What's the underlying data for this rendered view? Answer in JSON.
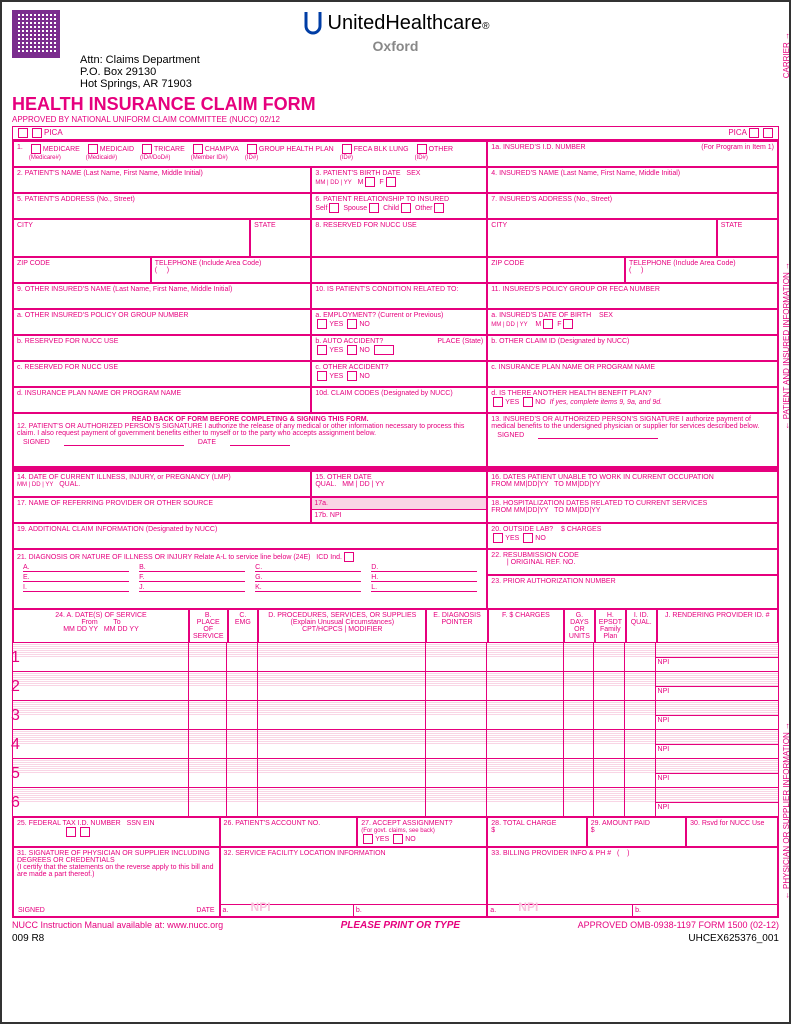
{
  "brand": {
    "name": "UnitedHealthcare",
    "sub": "Oxford",
    "trademark": "®"
  },
  "mailing": {
    "attn": "Attn: Claims Department",
    "po": "P.O. Box 29130",
    "city": "Hot Springs, AR 71903"
  },
  "form": {
    "title": "HEALTH INSURANCE CLAIM FORM",
    "approved": "APPROVED BY NATIONAL UNIFORM CLAIM COMMITTEE (NUCC) 02/12",
    "pica": "PICA"
  },
  "box1": {
    "medicare": "MEDICARE",
    "medicare_sub": "(Medicare#)",
    "medicaid": "MEDICAID",
    "medicaid_sub": "(Medicaid#)",
    "tricare": "TRICARE",
    "tricare_sub": "(ID#/DoD#)",
    "champva": "CHAMPVA",
    "champva_sub": "(Member ID#)",
    "group": "GROUP HEALTH PLAN",
    "group_sub": "(ID#)",
    "feca": "FECA BLK LUNG",
    "feca_sub": "(ID#)",
    "other": "OTHER",
    "other_sub": "(ID#)"
  },
  "box1a": {
    "label": "1a. INSURED'S I.D. NUMBER",
    "hint": "(For Program in Item 1)"
  },
  "box2": {
    "label": "2. PATIENT'S NAME (Last Name, First Name, Middle Initial)"
  },
  "box3": {
    "label": "3. PATIENT'S BIRTH DATE",
    "mm": "MM",
    "dd": "DD",
    "yy": "YY",
    "sex": "SEX",
    "m": "M",
    "f": "F"
  },
  "box4": {
    "label": "4. INSURED'S NAME (Last Name, First Name, Middle Initial)"
  },
  "box5": {
    "label": "5. PATIENT'S ADDRESS (No., Street)",
    "city": "CITY",
    "state": "STATE",
    "zip": "ZIP CODE",
    "tel": "TELEPHONE (Include Area Code)"
  },
  "box6": {
    "label": "6. PATIENT RELATIONSHIP TO INSURED",
    "self": "Self",
    "spouse": "Spouse",
    "child": "Child",
    "other": "Other"
  },
  "box7": {
    "label": "7. INSURED'S ADDRESS (No., Street)",
    "city": "CITY",
    "state": "STATE",
    "zip": "ZIP CODE",
    "tel": "TELEPHONE (Include Area Code)"
  },
  "box8": {
    "label": "8. RESERVED FOR NUCC USE"
  },
  "box9": {
    "label": "9. OTHER INSURED'S NAME (Last Name, First Name, Middle Initial)",
    "a": "a. OTHER INSURED'S POLICY OR GROUP NUMBER",
    "b": "b. RESERVED FOR NUCC USE",
    "c": "c. RESERVED FOR NUCC USE",
    "d": "d. INSURANCE PLAN NAME OR PROGRAM NAME"
  },
  "box10": {
    "label": "10. IS PATIENT'S CONDITION RELATED TO:",
    "a": "a. EMPLOYMENT? (Current or Previous)",
    "b": "b. AUTO ACCIDENT?",
    "c": "c. OTHER ACCIDENT?",
    "yes": "YES",
    "no": "NO",
    "place": "PLACE (State)",
    "d": "10d. CLAIM CODES (Designated by NUCC)"
  },
  "box11": {
    "label": "11. INSURED'S POLICY GROUP OR FECA NUMBER",
    "a": "a. INSURED'S DATE OF BIRTH",
    "sex": "SEX",
    "m": "M",
    "f": "F",
    "b": "b. OTHER CLAIM ID (Designated by NUCC)",
    "c": "c. INSURANCE PLAN NAME OR PROGRAM NAME",
    "d": "d. IS THERE ANOTHER HEALTH BENEFIT PLAN?",
    "yes": "YES",
    "no": "NO",
    "d_hint": "If yes, complete items 9, 9a, and 9d."
  },
  "box12": {
    "read": "READ BACK OF FORM BEFORE COMPLETING & SIGNING THIS FORM.",
    "label": "12. PATIENT'S OR AUTHORIZED PERSON'S SIGNATURE  I authorize the release of any medical or other information necessary to process this claim. I also request payment of government benefits either to myself or to the party who accepts assignment below.",
    "signed": "SIGNED",
    "date": "DATE"
  },
  "box13": {
    "label": "13. INSURED'S OR AUTHORIZED PERSON'S SIGNATURE I authorize payment of medical benefits to the undersigned physician or supplier for services described below.",
    "signed": "SIGNED"
  },
  "box14": {
    "label": "14. DATE OF CURRENT ILLNESS, INJURY, or PREGNANCY (LMP)",
    "qual": "QUAL."
  },
  "box15": {
    "label": "15. OTHER DATE",
    "qual": "QUAL."
  },
  "box16": {
    "label": "16. DATES PATIENT UNABLE TO WORK IN CURRENT OCCUPATION",
    "from": "FROM",
    "to": "TO"
  },
  "box17": {
    "label": "17. NAME OF REFERRING PROVIDER OR OTHER SOURCE",
    "a": "17a.",
    "b": "17b.",
    "npi": "NPI"
  },
  "box18": {
    "label": "18. HOSPITALIZATION DATES RELATED TO CURRENT SERVICES",
    "from": "FROM",
    "to": "TO"
  },
  "box19": {
    "label": "19. ADDITIONAL CLAIM INFORMATION (Designated by NUCC)"
  },
  "box20": {
    "label": "20. OUTSIDE LAB?",
    "yes": "YES",
    "no": "NO",
    "charges": "$ CHARGES"
  },
  "box21": {
    "label": "21. DIAGNOSIS OR NATURE OF ILLNESS OR INJURY  Relate A-L to service line below (24E)",
    "icd": "ICD Ind.",
    "A": "A.",
    "B": "B.",
    "C": "C.",
    "D": "D.",
    "E": "E.",
    "F": "F.",
    "G": "G.",
    "H": "H.",
    "I": "I.",
    "J": "J.",
    "K": "K.",
    "L": "L."
  },
  "box22": {
    "label": "22. RESUBMISSION CODE",
    "orig": "ORIGINAL REF. NO."
  },
  "box23": {
    "label": "23. PRIOR AUTHORIZATION NUMBER"
  },
  "box24_headers": {
    "A": "24. A.    DATE(S) OF SERVICE",
    "from": "From",
    "to": "To",
    "mm": "MM",
    "dd": "DD",
    "yy": "YY",
    "B": "B. PLACE OF SERVICE",
    "C": "C. EMG",
    "D": "D. PROCEDURES, SERVICES, OR SUPPLIES",
    "D2": "(Explain Unusual Circumstances)",
    "cpt": "CPT/HCPCS",
    "mod": "MODIFIER",
    "E": "E. DIAGNOSIS POINTER",
    "F": "F. $ CHARGES",
    "G": "G. DAYS OR UNITS",
    "H": "H. EPSDT Family Plan",
    "I": "I. ID. QUAL.",
    "J": "J. RENDERING PROVIDER ID. #",
    "npi": "NPI"
  },
  "service_rows": [
    "1",
    "2",
    "3",
    "4",
    "5",
    "6"
  ],
  "box25": {
    "label": "25. FEDERAL TAX I.D. NUMBER",
    "ssn": "SSN",
    "ein": "EIN"
  },
  "box26": {
    "label": "26. PATIENT'S ACCOUNT NO."
  },
  "box27": {
    "label": "27. ACCEPT ASSIGNMENT?",
    "hint": "(For govt. claims, see back)",
    "yes": "YES",
    "no": "NO"
  },
  "box28": {
    "label": "28. TOTAL CHARGE",
    "s": "$"
  },
  "box29": {
    "label": "29. AMOUNT PAID",
    "s": "$"
  },
  "box30": {
    "label": "30. Rsvd for NUCC Use"
  },
  "box31": {
    "label": "31. SIGNATURE OF PHYSICIAN OR SUPPLIER INCLUDING DEGREES OR CREDENTIALS",
    "cert": "(I certify that the statements on the reverse apply to this bill and are made a part thereof.)",
    "signed": "SIGNED",
    "date": "DATE"
  },
  "box32": {
    "label": "32. SERVICE FACILITY LOCATION INFORMATION",
    "a": "a.",
    "b": "b.",
    "npi": "NPI"
  },
  "box33": {
    "label": "33. BILLING PROVIDER INFO & PH #",
    "a": "a.",
    "b": "b.",
    "npi": "NPI"
  },
  "footer": {
    "nucc": "NUCC Instruction Manual available at: www.nucc.org",
    "print": "PLEASE PRINT OR TYPE",
    "omb": "APPROVED OMB-0938-1197 FORM 1500 (02-12)",
    "rev": "009 R8",
    "code": "UHCEX625376_001"
  },
  "side": {
    "carrier": "CARRIER",
    "patient": "PATIENT AND INSURED INFORMATION",
    "supplier": "PHYSICIAN OR SUPPLIER INFORMATION"
  },
  "colors": {
    "pink": "#e6007e",
    "lightpink": "#f9d5e5",
    "black": "#000",
    "gray": "#888"
  }
}
